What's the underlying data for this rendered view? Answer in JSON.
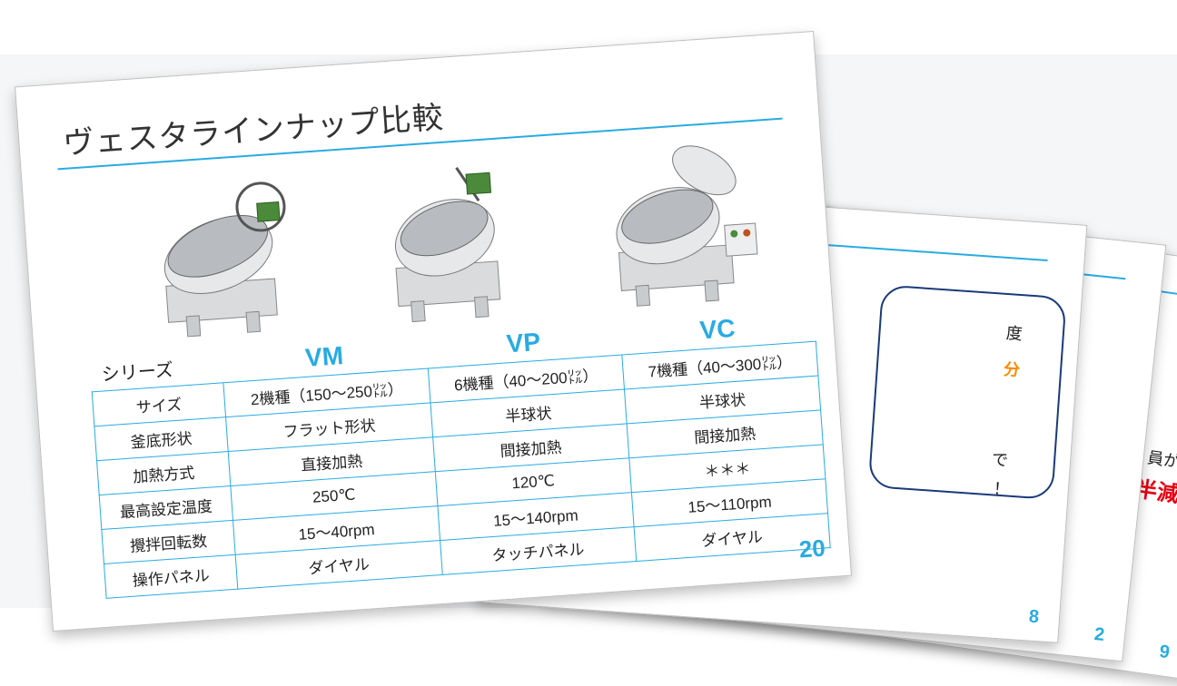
{
  "colors": {
    "accent": "#29abe2",
    "border": "#bfbfbf",
    "bgBand": "#f5f6f7",
    "text": "#222222",
    "red": "#e60012",
    "orange": "#ff8a00",
    "navy": "#1a3a7a"
  },
  "backCards": {
    "c2": {
      "pageNum": "8"
    },
    "c3": {
      "pageNum": "2"
    },
    "c4": {
      "pageNum": "9",
      "fragBlack": "員が",
      "fragRed": "半減"
    }
  },
  "front": {
    "title": "ヴェスタラインナップ比較",
    "pageNum": "20",
    "models": [
      {
        "code": "VM"
      },
      {
        "code": "VP"
      },
      {
        "code": "VC"
      }
    ],
    "table": {
      "seriesLabel": "シリーズ",
      "rows": [
        {
          "label": "サイズ",
          "vm": "2機種（150～250㍑）",
          "vp": "6機種（40～200㍑）",
          "vc": "7機種（40～300㍑）"
        },
        {
          "label": "釜底形状",
          "vm": "フラット形状",
          "vp": "半球状",
          "vc": "半球状"
        },
        {
          "label": "加熱方式",
          "vm": "直接加熱",
          "vp": "間接加熱",
          "vc": "間接加熱"
        },
        {
          "label": "最高設定温度",
          "vm": "250℃",
          "vp": "120℃",
          "vc": "＊＊＊"
        },
        {
          "label": "攪拌回転数",
          "vm": "15～40rpm",
          "vp": "15～140rpm",
          "vc": "15～110rpm"
        },
        {
          "label": "操作パネル",
          "vm": "ダイヤル",
          "vp": "タッチパネル",
          "vc": "ダイヤル"
        }
      ]
    }
  }
}
